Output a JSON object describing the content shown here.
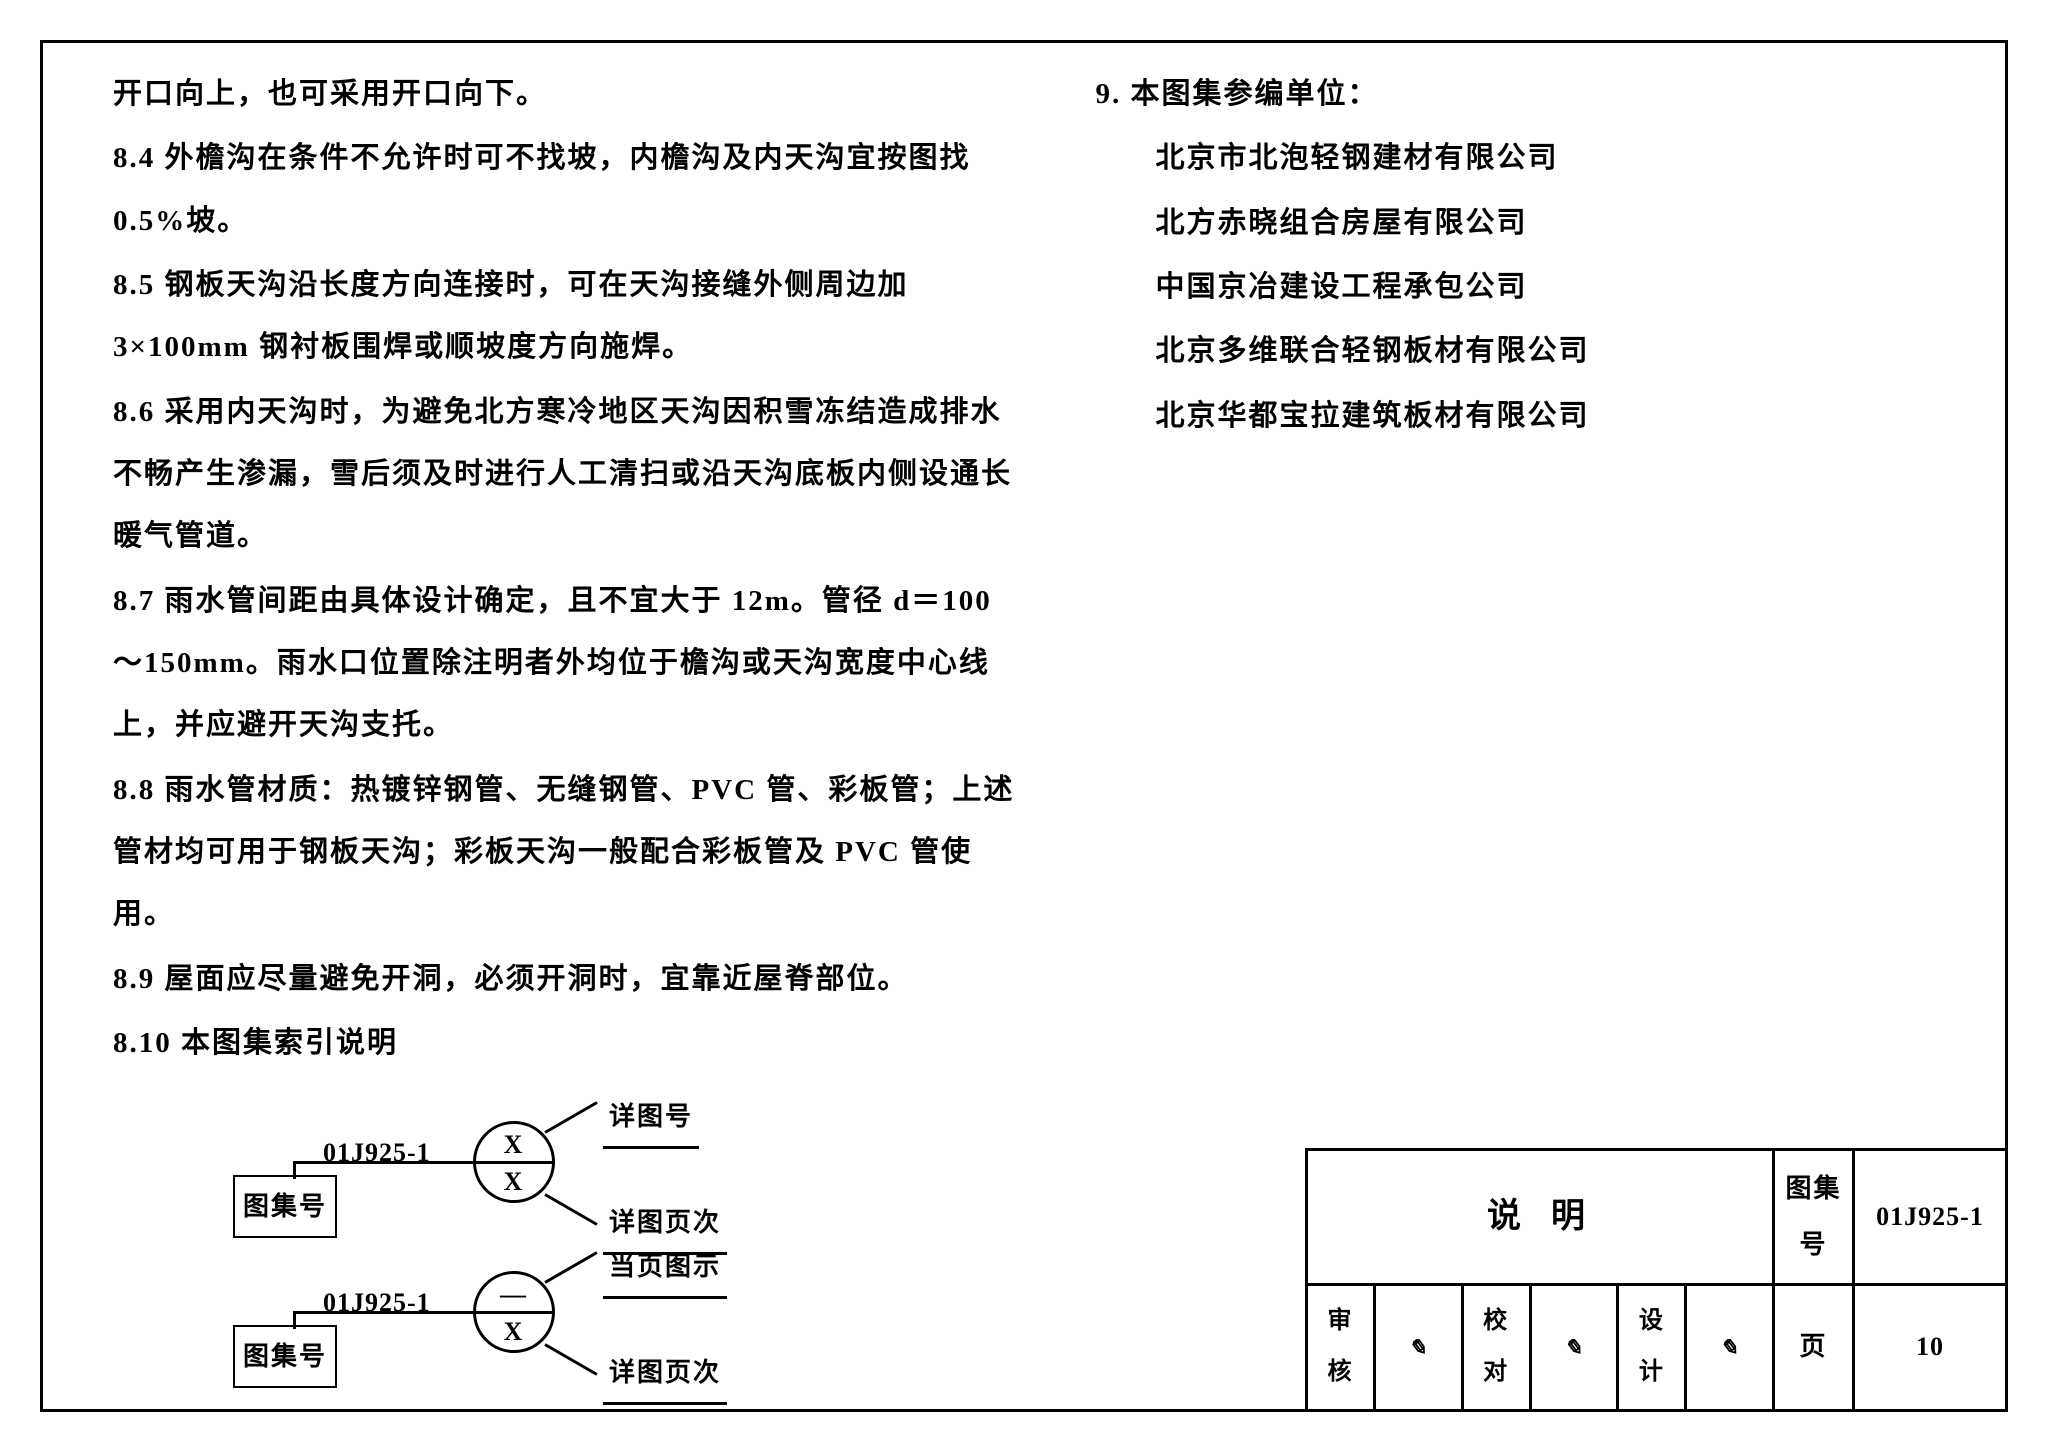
{
  "left_column": {
    "p0": "开口向上，也可采用开口向下。",
    "p1": "8.4 外檐沟在条件不允许时可不找坡，内檐沟及内天沟宜按图找 0.5%坡。",
    "p2": "8.5 钢板天沟沿长度方向连接时，可在天沟接缝外侧周边加 3×100mm 钢衬板围焊或顺坡度方向施焊。",
    "p3": "8.6 采用内天沟时，为避免北方寒冷地区天沟因积雪冻结造成排水不畅产生渗漏，雪后须及时进行人工清扫或沿天沟底板内侧设通长暖气管道。",
    "p4": "8.7 雨水管间距由具体设计确定，且不宜大于 12m。管径 d＝100～150mm。雨水口位置除注明者外均位于檐沟或天沟宽度中心线上，并应避开天沟支托。",
    "p5": "8.8 雨水管材质：热镀锌钢管、无缝钢管、PVC 管、彩板管；上述管材均可用于钢板天沟；彩板天沟一般配合彩板管及 PVC 管使用。",
    "p6": "8.9 屋面应尽量避免开洞，必须开洞时，宜靠近屋脊部位。",
    "p7": "8.10 本图集索引说明"
  },
  "legend": {
    "code": "01J925-1",
    "tuset_label": "图集号",
    "item1": {
      "top": "X",
      "bot": "X",
      "tr": "详图号",
      "br": "详图页次"
    },
    "item2": {
      "top": "—",
      "bot": "X",
      "tr": "当页图示",
      "br": "详图页次"
    }
  },
  "right_column": {
    "h9": "9. 本图集参编单位：",
    "orgs": [
      "北京市北泡轻钢建材有限公司",
      "北方赤晓组合房屋有限公司",
      "中国京冶建设工程承包公司",
      "北京多维联合轻钢板材有限公司",
      "北京华都宝拉建筑板材有限公司"
    ]
  },
  "titleblock": {
    "title": "说明",
    "tuset_k": "图集号",
    "tuset_v": "01J925-1",
    "审核": "审核",
    "校对": "校对",
    "设计": "设计",
    "页": "页",
    "页v": "10"
  },
  "colors": {
    "ink": "#000000",
    "paper": "#ffffff"
  }
}
